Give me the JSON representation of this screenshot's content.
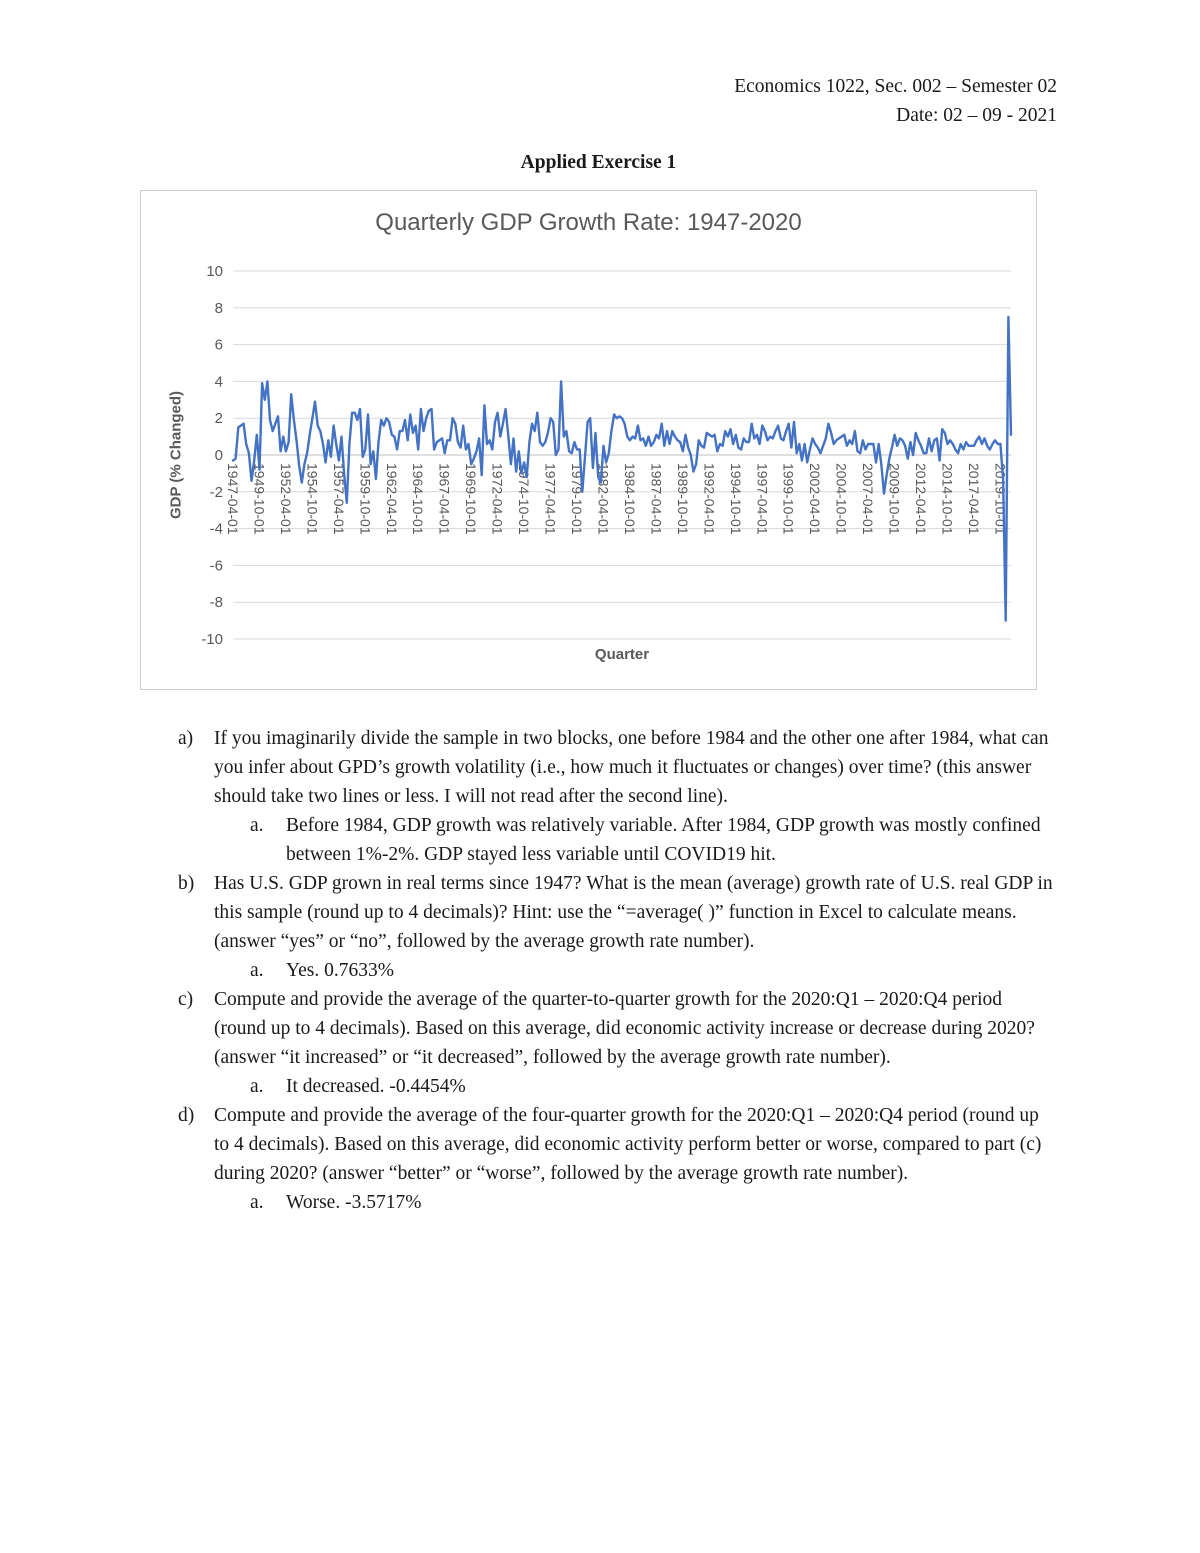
{
  "header": {
    "course": "Economics 1022, Sec. 002 – Semester 02",
    "date": "Date: 02 – 09 - 2021"
  },
  "title": "Applied Exercise 1",
  "chart_data": {
    "type": "line",
    "title": "Quarterly GDP Growth Rate: 1947-2020",
    "xlabel": "Quarter",
    "ylabel": "GDP (% Changed)",
    "ylim": [
      -10,
      10
    ],
    "ytick_step": 2,
    "x_tick_every": 10,
    "line_color": "#4472C4",
    "grid_color": "#d9d9d9",
    "axis_text_color": "#595959",
    "x_tick_labels": [
      "1947-04-01",
      "1949-10-01",
      "1952-04-01",
      "1954-10-01",
      "1957-04-01",
      "1959-10-01",
      "1962-04-01",
      "1964-10-01",
      "1967-04-01",
      "1969-10-01",
      "1972-04-01",
      "1974-10-01",
      "1977-04-01",
      "1979-10-01",
      "1982-04-01",
      "1984-10-01",
      "1987-04-01",
      "1989-10-01",
      "1992-04-01",
      "1994-10-01",
      "1997-04-01",
      "1999-10-01",
      "2002-04-01",
      "2004-10-01",
      "2007-04-01",
      "2009-10-01",
      "2012-04-01",
      "2014-10-01",
      "2017-04-01",
      "2019-10-01"
    ],
    "values": [
      -0.3,
      -0.2,
      1.5,
      1.6,
      1.7,
      0.6,
      0.1,
      -1.4,
      -0.3,
      1.1,
      -0.8,
      3.9,
      3.0,
      4.0,
      1.9,
      1.3,
      1.7,
      2.1,
      0.2,
      1.0,
      0.2,
      0.7,
      3.3,
      1.9,
      0.8,
      -0.6,
      -1.5,
      -0.5,
      0.1,
      1.1,
      2.0,
      2.9,
      1.6,
      1.3,
      0.6,
      -0.4,
      0.8,
      -0.1,
      1.6,
      0.6,
      -0.3,
      1.0,
      -1.0,
      -2.6,
      0.6,
      2.3,
      2.3,
      1.9,
      2.5,
      -0.1,
      0.3,
      2.2,
      -0.5,
      0.2,
      -1.3,
      0.7,
      1.9,
      1.6,
      2.0,
      1.8,
      1.1,
      1.0,
      0.3,
      1.3,
      1.3,
      1.9,
      0.8,
      2.2,
      1.2,
      1.6,
      0.3,
      2.5,
      1.3,
      2.0,
      2.4,
      2.5,
      0.3,
      0.7,
      0.8,
      0.9,
      0.1,
      0.8,
      0.8,
      2.0,
      1.7,
      0.7,
      0.4,
      1.6,
      0.3,
      0.6,
      -0.5,
      -0.2,
      0.2,
      0.9,
      -1.1,
      2.7,
      0.6,
      0.8,
      0.3,
      1.8,
      2.3,
      1.0,
      1.7,
      2.5,
      1.1,
      -0.5,
      0.9,
      -0.9,
      0.2,
      -1.0,
      -0.4,
      -1.2,
      0.7,
      1.7,
      1.3,
      2.3,
      0.7,
      0.5,
      0.7,
      1.2,
      2.0,
      1.8,
      0.0,
      0.3,
      4.0,
      1.0,
      1.3,
      0.2,
      0.1,
      0.7,
      0.3,
      0.3,
      -2.0,
      -0.1,
      1.8,
      2.0,
      -0.7,
      1.2,
      -1.2,
      -1.5,
      0.5,
      -0.4,
      0.1,
      1.3,
      2.2,
      2.0,
      2.1,
      2.0,
      1.7,
      1.0,
      0.8,
      1.0,
      0.9,
      1.6,
      0.8,
      0.9,
      0.5,
      1.0,
      0.5,
      0.7,
      1.1,
      0.9,
      1.7,
      0.5,
      1.3,
      0.6,
      1.3,
      1.0,
      0.8,
      0.7,
      0.2,
      1.1,
      0.4,
      0.0,
      -0.9,
      -0.5,
      0.8,
      0.5,
      0.4,
      1.2,
      1.1,
      1.0,
      1.1,
      0.2,
      0.6,
      0.5,
      1.3,
      1.0,
      1.4,
      0.6,
      1.1,
      0.4,
      0.3,
      0.9,
      0.7,
      0.7,
      1.7,
      0.9,
      1.1,
      0.6,
      1.6,
      1.3,
      0.8,
      1.0,
      0.9,
      1.3,
      1.6,
      0.9,
      0.8,
      1.3,
      1.7,
      0.4,
      1.8,
      0.1,
      0.6,
      -0.3,
      0.6,
      -0.4,
      0.3,
      0.9,
      0.6,
      0.4,
      0.1,
      0.5,
      0.9,
      1.7,
      1.2,
      0.6,
      0.8,
      0.9,
      1.0,
      1.1,
      0.5,
      0.8,
      0.6,
      1.3,
      0.2,
      0.1,
      0.8,
      0.3,
      0.6,
      0.6,
      0.6,
      -0.4,
      0.6,
      -0.5,
      -2.1,
      -1.1,
      -0.2,
      0.4,
      1.1,
      0.5,
      0.9,
      0.8,
      0.5,
      -0.2,
      0.7,
      0.0,
      1.2,
      0.8,
      0.5,
      0.1,
      0.1,
      0.9,
      0.2,
      0.8,
      0.9,
      -0.3,
      1.4,
      1.2,
      0.6,
      0.8,
      0.6,
      0.3,
      0.1,
      0.6,
      0.3,
      0.7,
      0.5,
      0.5,
      0.5,
      0.8,
      1.0,
      0.6,
      0.9,
      0.5,
      0.3,
      0.6,
      0.8,
      0.6,
      0.6,
      -1.3,
      -9.0,
      7.5,
      1.1
    ]
  },
  "questions": [
    {
      "marker": "a)",
      "text": "If you imaginarily divide the sample in two blocks, one before 1984 and the other one after 1984, what can you infer about GPD’s growth volatility (i.e., how much it fluctuates or changes) over time? (this answer should take two lines or less. I will not read after the second line).",
      "answer_marker": "a.",
      "answer": "Before 1984, GDP growth was relatively variable. After 1984, GDP growth was mostly confined between 1%-2%. GDP stayed less variable until COVID19 hit."
    },
    {
      "marker": "b)",
      "text": "Has U.S. GDP grown in real terms since 1947? What is the mean (average) growth rate of U.S. real GDP in this sample (round up to 4 decimals)? Hint: use the “=average( )” function in Excel to calculate means. (answer “yes” or “no”, followed by the average growth rate number).",
      "answer_marker": "a.",
      "answer": "Yes. 0.7633%"
    },
    {
      "marker": "c)",
      "text": "Compute and provide the average of the quarter-to-quarter growth for the 2020:Q1 – 2020:Q4 period (round up to 4 decimals). Based on this average, did economic activity increase or decrease during 2020? (answer “it increased” or “it decreased”, followed by the average growth rate number).",
      "answer_marker": "a.",
      "answer": "It decreased. -0.4454%"
    },
    {
      "marker": "d)",
      "text": "Compute and provide the average of the four-quarter growth for the 2020:Q1 – 2020:Q4 period (round up to 4 decimals). Based on this average, did economic activity perform better or worse, compared to part (c) during 2020? (answer “better” or “worse”, followed by the average growth rate number).",
      "answer_marker": "a.",
      "answer": "Worse. -3.5717%"
    }
  ]
}
